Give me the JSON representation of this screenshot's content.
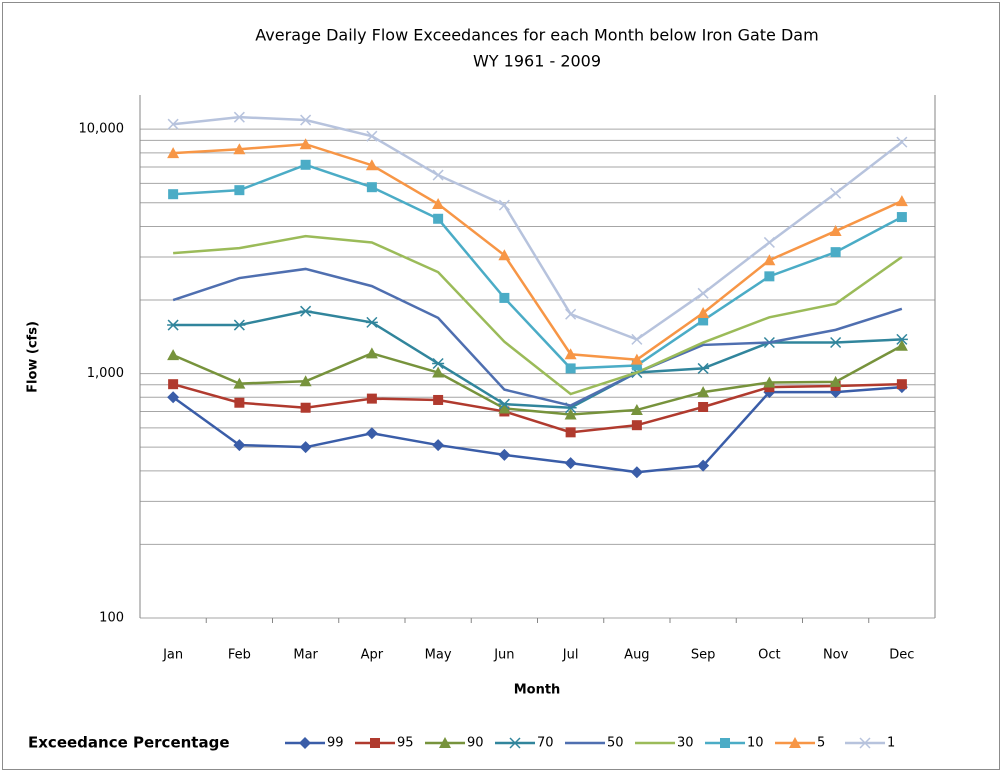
{
  "chart_data": {
    "type": "line",
    "title": "Average Daily Flow Exceedances for each Month below Iron Gate Dam",
    "subtitle": "WY 1961 - 2009",
    "x_label": "Month",
    "y_label": "Flow (cfs)",
    "legend_title": "Exceedance Percentage",
    "log_scale": true,
    "grid": true,
    "legend": "bottom",
    "categories": [
      "Jan",
      "Feb",
      "Mar",
      "Apr",
      "May",
      "Jun",
      "Jul",
      "Aug",
      "Sep",
      "Oct",
      "Nov",
      "Dec"
    ],
    "ylim": [
      100,
      13800
    ],
    "yticks": [
      100,
      {
        "value": 1000,
        "label": "1,000"
      },
      {
        "value": 10000,
        "label": "10,000"
      }
    ],
    "series": [
      {
        "name": "99",
        "color": "#3a5da8",
        "marker": "diamond",
        "values": [
          800,
          510,
          500,
          570,
          510,
          465,
          430,
          395,
          420,
          840,
          840,
          880
        ]
      },
      {
        "name": "95",
        "color": "#b03a2e",
        "marker": "square",
        "values": [
          905,
          760,
          725,
          790,
          780,
          700,
          575,
          615,
          730,
          880,
          890,
          905
        ]
      },
      {
        "name": "90",
        "color": "#77933c",
        "marker": "triangle",
        "values": [
          1190,
          910,
          930,
          1210,
          1010,
          720,
          680,
          710,
          840,
          920,
          925,
          1300
        ]
      },
      {
        "name": "70",
        "color": "#31859c",
        "marker": "asterisk",
        "values": [
          1580,
          1580,
          1800,
          1620,
          1100,
          750,
          725,
          1010,
          1050,
          1340,
          1340,
          1380
        ]
      },
      {
        "name": "50",
        "color": "#4f6fb0",
        "marker": "none",
        "values": [
          2000,
          2460,
          2680,
          2280,
          1690,
          860,
          740,
          1010,
          1310,
          1340,
          1510,
          1840
        ]
      },
      {
        "name": "30",
        "color": "#9bbb59",
        "marker": "none",
        "values": [
          3110,
          3260,
          3650,
          3440,
          2600,
          1350,
          825,
          1010,
          1340,
          1700,
          1930,
          3000
        ]
      },
      {
        "name": "10",
        "color": "#4bacc6",
        "marker": "square",
        "values": [
          5420,
          5630,
          7150,
          5790,
          4300,
          2040,
          1050,
          1080,
          1650,
          2500,
          3140,
          4370
        ]
      },
      {
        "name": "5",
        "color": "#f79646",
        "marker": "triangle",
        "values": [
          7980,
          8280,
          8680,
          7120,
          4940,
          3050,
          1200,
          1140,
          1770,
          2910,
          3830,
          5080
        ]
      },
      {
        "name": "1",
        "color": "#b7c3dd",
        "marker": "x",
        "values": [
          10480,
          11200,
          10900,
          9360,
          6490,
          4890,
          1750,
          1380,
          2130,
          3440,
          5470,
          8850
        ]
      }
    ]
  }
}
